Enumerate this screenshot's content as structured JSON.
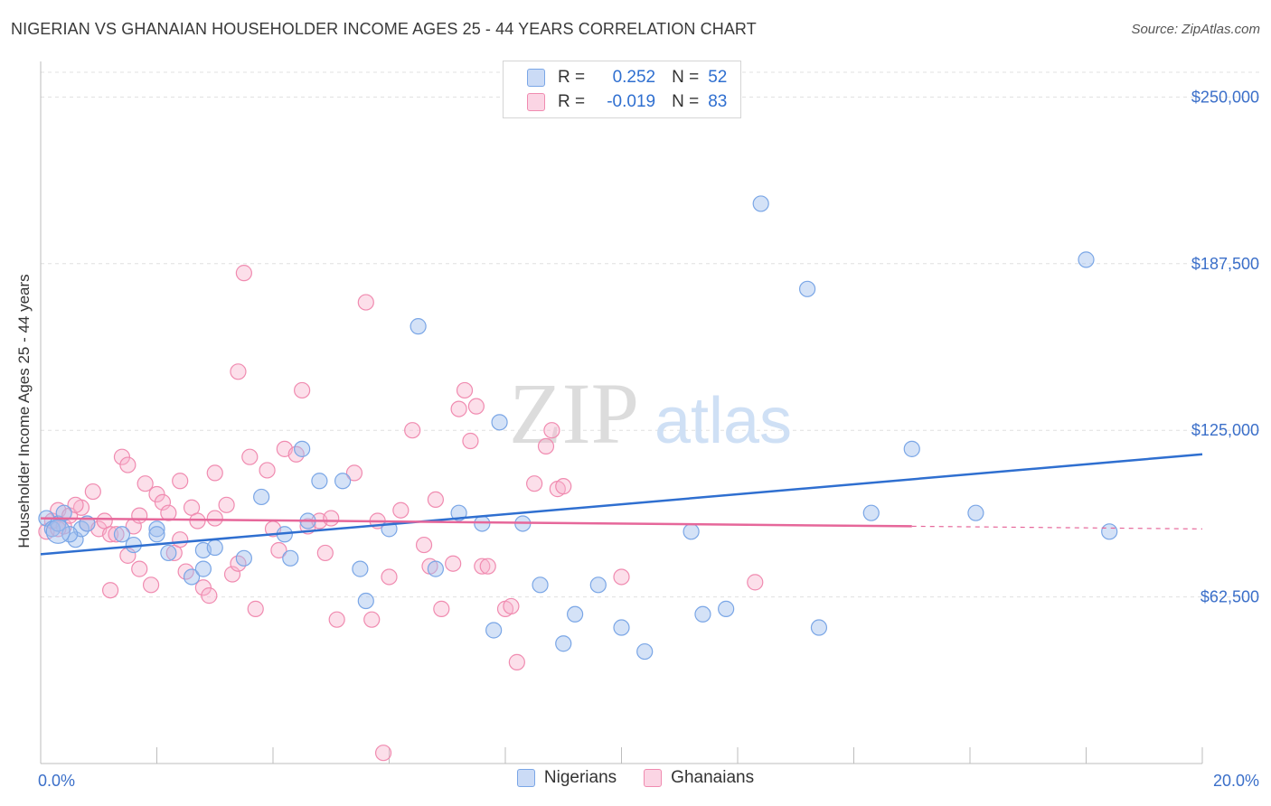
{
  "title": "NIGERIAN VS GHANAIAN HOUSEHOLDER INCOME AGES 25 - 44 YEARS CORRELATION CHART",
  "source": "Source: ZipAtlas.com",
  "watermark": {
    "zip": "ZIP",
    "atlas": "atlas"
  },
  "legend_box": {
    "rows": [
      {
        "r_label": "R =",
        "r_value": "0.252",
        "n_label": "N =",
        "n_value": "52",
        "color": "#7aa6e6"
      },
      {
        "r_label": "R =",
        "r_value": "-0.019",
        "n_label": "N =",
        "n_value": "83",
        "color": "#f08bb0"
      }
    ]
  },
  "bottom_legend": [
    {
      "label": "Nigerians",
      "color": "#7aa6e6"
    },
    {
      "label": "Ghanaians",
      "color": "#f08bb0"
    }
  ],
  "chart_data": {
    "type": "scatter",
    "title": "NIGERIAN VS GHANAIAN HOUSEHOLDER INCOME AGES 25 - 44 YEARS CORRELATION CHART",
    "xlabel": "",
    "ylabel": "Householder Income Ages 25 - 44 years",
    "xlim": [
      0,
      20
    ],
    "ylim": [
      0,
      262000
    ],
    "x_tick_labels": [
      "0.0%",
      "20.0%"
    ],
    "y_ticks": [
      62500,
      125000,
      187500,
      250000
    ],
    "y_tick_labels": [
      "$62,500",
      "$125,000",
      "$187,500",
      "$250,000"
    ],
    "grid": true,
    "legend_position": "top-center",
    "series": [
      {
        "name": "Nigerians",
        "color": "#7aa6e6",
        "trend": {
          "x": [
            0,
            20
          ],
          "y": [
            78500,
            116000
          ],
          "color": "#2f6fd0",
          "dashed_from": null
        },
        "points": [
          [
            0.1,
            92000
          ],
          [
            0.2,
            88000
          ],
          [
            0.3,
            90000
          ],
          [
            0.4,
            94000
          ],
          [
            0.6,
            84000
          ],
          [
            0.7,
            88000
          ],
          [
            0.8,
            90000
          ],
          [
            1.4,
            86000
          ],
          [
            1.6,
            82000
          ],
          [
            2.0,
            88000
          ],
          [
            2.0,
            86000
          ],
          [
            2.2,
            79000
          ],
          [
            2.6,
            70000
          ],
          [
            2.8,
            80000
          ],
          [
            2.8,
            73000
          ],
          [
            3.0,
            81000
          ],
          [
            3.5,
            77000
          ],
          [
            3.8,
            100000
          ],
          [
            4.2,
            86000
          ],
          [
            4.3,
            77000
          ],
          [
            4.5,
            118000
          ],
          [
            4.6,
            91000
          ],
          [
            4.8,
            106000
          ],
          [
            5.2,
            106000
          ],
          [
            5.5,
            73000
          ],
          [
            5.6,
            61000
          ],
          [
            6.0,
            88000
          ],
          [
            6.5,
            164000
          ],
          [
            6.8,
            73000
          ],
          [
            7.2,
            94000
          ],
          [
            7.6,
            90000
          ],
          [
            7.8,
            50000
          ],
          [
            7.9,
            128000
          ],
          [
            8.3,
            90000
          ],
          [
            8.6,
            67000
          ],
          [
            9.0,
            45000
          ],
          [
            9.2,
            56000
          ],
          [
            9.6,
            67000
          ],
          [
            10.0,
            51000
          ],
          [
            10.4,
            42000
          ],
          [
            11.2,
            87000
          ],
          [
            11.4,
            56000
          ],
          [
            11.8,
            58000
          ],
          [
            12.4,
            210000
          ],
          [
            13.2,
            178000
          ],
          [
            13.4,
            51000
          ],
          [
            14.3,
            94000
          ],
          [
            15.0,
            118000
          ],
          [
            16.1,
            94000
          ],
          [
            18.0,
            189000
          ],
          [
            18.4,
            87000
          ],
          [
            0.5,
            86000
          ]
        ]
      },
      {
        "name": "Ghanaians",
        "color": "#f08bb0",
        "trend": {
          "x": [
            0,
            15
          ],
          "y": [
            92000,
            89000
          ],
          "color": "#e6679a",
          "dashed_to": 20
        },
        "points": [
          [
            0.1,
            87000
          ],
          [
            0.2,
            91000
          ],
          [
            0.3,
            95000
          ],
          [
            0.4,
            89000
          ],
          [
            0.5,
            93000
          ],
          [
            0.7,
            96000
          ],
          [
            0.8,
            90000
          ],
          [
            0.9,
            102000
          ],
          [
            1.0,
            88000
          ],
          [
            1.1,
            91000
          ],
          [
            1.2,
            86000
          ],
          [
            1.3,
            86000
          ],
          [
            1.4,
            115000
          ],
          [
            1.5,
            112000
          ],
          [
            1.6,
            89000
          ],
          [
            1.7,
            93000
          ],
          [
            1.7,
            73000
          ],
          [
            1.8,
            105000
          ],
          [
            2.0,
            101000
          ],
          [
            2.1,
            98000
          ],
          [
            2.2,
            94000
          ],
          [
            2.3,
            79000
          ],
          [
            2.4,
            106000
          ],
          [
            2.5,
            72000
          ],
          [
            2.6,
            96000
          ],
          [
            2.7,
            91000
          ],
          [
            2.8,
            66000
          ],
          [
            3.0,
            109000
          ],
          [
            3.0,
            92000
          ],
          [
            3.2,
            97000
          ],
          [
            3.3,
            71000
          ],
          [
            3.4,
            147000
          ],
          [
            3.5,
            184000
          ],
          [
            3.6,
            115000
          ],
          [
            3.7,
            58000
          ],
          [
            3.9,
            110000
          ],
          [
            4.0,
            88000
          ],
          [
            4.2,
            118000
          ],
          [
            4.4,
            116000
          ],
          [
            4.5,
            140000
          ],
          [
            4.6,
            89000
          ],
          [
            4.8,
            91000
          ],
          [
            4.9,
            79000
          ],
          [
            5.0,
            92000
          ],
          [
            5.1,
            54000
          ],
          [
            5.4,
            109000
          ],
          [
            5.6,
            173000
          ],
          [
            5.7,
            54000
          ],
          [
            5.8,
            91000
          ],
          [
            5.9,
            4000
          ],
          [
            6.2,
            95000
          ],
          [
            6.4,
            125000
          ],
          [
            6.6,
            82000
          ],
          [
            6.7,
            74000
          ],
          [
            6.8,
            99000
          ],
          [
            6.9,
            58000
          ],
          [
            7.1,
            75000
          ],
          [
            7.2,
            133000
          ],
          [
            7.3,
            140000
          ],
          [
            7.4,
            121000
          ],
          [
            7.5,
            134000
          ],
          [
            7.6,
            74000
          ],
          [
            7.7,
            74000
          ],
          [
            8.0,
            58000
          ],
          [
            8.2,
            38000
          ],
          [
            8.5,
            105000
          ],
          [
            8.7,
            119000
          ],
          [
            8.8,
            125000
          ],
          [
            8.9,
            103000
          ],
          [
            9.0,
            104000
          ],
          [
            10.0,
            70000
          ],
          [
            12.3,
            68000
          ],
          [
            1.9,
            67000
          ],
          [
            2.9,
            63000
          ],
          [
            3.4,
            75000
          ],
          [
            1.2,
            65000
          ],
          [
            0.6,
            97000
          ],
          [
            2.4,
            84000
          ],
          [
            4.1,
            80000
          ],
          [
            6.0,
            70000
          ],
          [
            8.1,
            59000
          ],
          [
            0.3,
            88000
          ],
          [
            1.5,
            78000
          ]
        ]
      }
    ]
  }
}
